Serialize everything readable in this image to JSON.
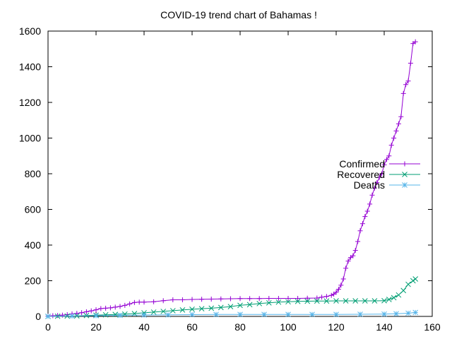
{
  "chart_data": {
    "type": "line",
    "title": "COVID-19 trend chart of Bahamas !",
    "xlim": [
      0,
      160
    ],
    "ylim": [
      0,
      1600
    ],
    "xticks": [
      0,
      20,
      40,
      60,
      80,
      100,
      120,
      140,
      160
    ],
    "yticks": [
      0,
      200,
      400,
      600,
      800,
      1000,
      1200,
      1400,
      1600
    ],
    "grid": false,
    "legend_position": "right",
    "series": [
      {
        "name": "Confirmed",
        "color": "#9400d3",
        "marker": "plus",
        "x": [
          0,
          2,
          4,
          6,
          8,
          10,
          12,
          14,
          16,
          18,
          20,
          22,
          24,
          26,
          28,
          30,
          32,
          34,
          36,
          38,
          40,
          44,
          48,
          52,
          56,
          60,
          64,
          68,
          72,
          76,
          80,
          84,
          88,
          92,
          96,
          100,
          104,
          108,
          112,
          114,
          116,
          118,
          119,
          120,
          121,
          122,
          123,
          124,
          125,
          126,
          127,
          128,
          129,
          130,
          131,
          132,
          133,
          134,
          135,
          136,
          137,
          138,
          139,
          140,
          141,
          142,
          143,
          144,
          145,
          146,
          147,
          148,
          149,
          150,
          151,
          152,
          153
        ],
        "y": [
          2,
          4,
          5,
          7,
          10,
          14,
          17,
          21,
          26,
          31,
          37,
          44,
          46,
          48,
          52,
          56,
          62,
          70,
          78,
          80,
          80,
          82,
          88,
          93,
          93,
          95,
          96,
          97,
          98,
          99,
          100,
          100,
          100,
          101,
          101,
          101,
          101,
          102,
          103,
          108,
          112,
          118,
          125,
          135,
          152,
          175,
          210,
          270,
          310,
          330,
          340,
          370,
          420,
          480,
          520,
          560,
          590,
          630,
          680,
          720,
          750,
          780,
          800,
          850,
          880,
          900,
          960,
          1000,
          1040,
          1080,
          1120,
          1250,
          1300,
          1320,
          1420,
          1530,
          1540
        ]
      },
      {
        "name": "Recovered",
        "color": "#009e73",
        "marker": "cross",
        "x": [
          0,
          4,
          8,
          12,
          16,
          20,
          24,
          28,
          32,
          36,
          40,
          44,
          48,
          52,
          56,
          60,
          64,
          68,
          72,
          76,
          80,
          84,
          88,
          92,
          96,
          100,
          104,
          108,
          112,
          116,
          120,
          124,
          128,
          132,
          136,
          140,
          142,
          144,
          146,
          148,
          150,
          152,
          153
        ],
        "y": [
          0,
          1,
          2,
          3,
          5,
          7,
          9,
          11,
          13,
          16,
          20,
          24,
          28,
          32,
          36,
          40,
          43,
          46,
          50,
          55,
          62,
          66,
          72,
          76,
          80,
          82,
          84,
          85,
          86,
          86,
          87,
          87,
          87,
          87,
          87,
          88,
          95,
          105,
          120,
          145,
          180,
          200,
          210
        ]
      },
      {
        "name": "Deaths",
        "color": "#56b4e9",
        "marker": "star",
        "x": [
          0,
          10,
          20,
          30,
          40,
          50,
          60,
          70,
          80,
          90,
          100,
          110,
          120,
          130,
          140,
          145,
          150,
          153
        ],
        "y": [
          0,
          2,
          4,
          6,
          8,
          9,
          10,
          11,
          11,
          11,
          11,
          11,
          11,
          12,
          13,
          15,
          18,
          22
        ]
      }
    ]
  }
}
